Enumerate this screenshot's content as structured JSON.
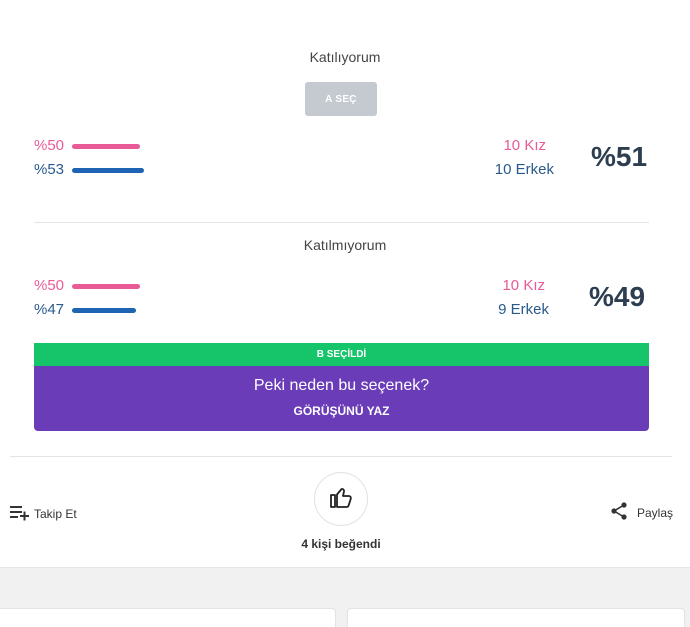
{
  "option_a": {
    "title": "Katılıyorum",
    "button_label": "A SEÇ",
    "female_pct": "%50",
    "male_pct": "%53",
    "female_share": 0.5,
    "male_share": 0.53,
    "female_count": "10 Kız",
    "male_count": "10 Erkek",
    "total_pct": "%51"
  },
  "option_b": {
    "title": "Katılmıyorum",
    "female_pct": "%50",
    "male_pct": "%47",
    "female_share": 0.5,
    "male_share": 0.47,
    "female_count": "10 Kız",
    "male_count": "9 Erkek",
    "total_pct": "%49",
    "selected_label": "B SEÇİLDİ"
  },
  "comment_prompt": {
    "question": "Peki neden bu seçenek?",
    "cta": "GÖRÜŞÜNÜ YAZ"
  },
  "actions": {
    "follow_label": "Takip Et",
    "share_label": "Paylaş",
    "likes_text": "4 kişi beğendi"
  },
  "colors": {
    "female": "#e85b97",
    "male": "#1f64b4",
    "selected": "#16c56a",
    "prompt": "#6a3cb8",
    "disabled_button": "#c5cad0"
  },
  "icons": {
    "follow": "playlist-add-icon",
    "like": "thumbs-up-icon",
    "share": "share-icon"
  }
}
